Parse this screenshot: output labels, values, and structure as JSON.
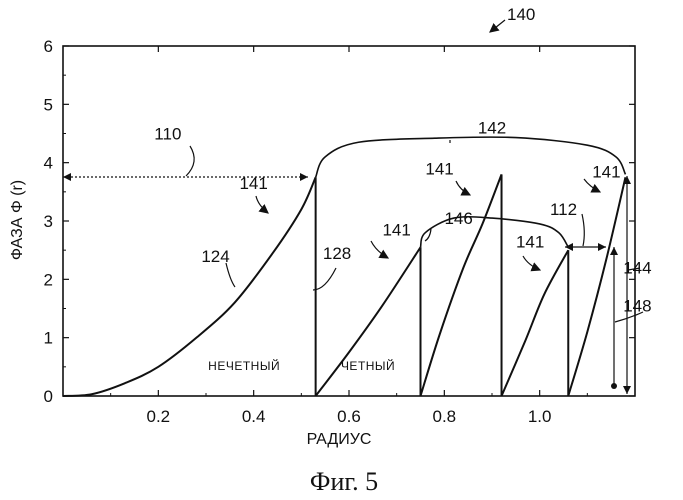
{
  "chart_data": {
    "type": "line",
    "title": "",
    "xlabel": "РАДИУС",
    "ylabel": "ФАЗА Φ (r)",
    "xlim": [
      0,
      1.2
    ],
    "ylim": [
      0,
      6
    ],
    "grid": false,
    "x_ticks": [
      "0.2",
      "0.4",
      "0.6",
      "0.8",
      "1.0"
    ],
    "y_ticks": [
      "0",
      "1",
      "2",
      "3",
      "4",
      "5",
      "6"
    ],
    "series": [
      {
        "points": [
          [
            0.0,
            0.0
          ],
          [
            0.06,
            0.03
          ],
          [
            0.13,
            0.22
          ],
          [
            0.2,
            0.5
          ],
          [
            0.28,
            1.0
          ],
          [
            0.36,
            1.6
          ],
          [
            0.44,
            2.45
          ],
          [
            0.5,
            3.2
          ],
          [
            0.53,
            3.75
          ]
        ]
      },
      {
        "points": [
          [
            0.53,
            3.75
          ],
          [
            0.53,
            0.0
          ]
        ]
      },
      {
        "points": [
          [
            0.53,
            0.0
          ],
          [
            0.6,
            0.75
          ],
          [
            0.67,
            1.55
          ],
          [
            0.75,
            2.55
          ]
        ]
      },
      {
        "points": [
          [
            0.75,
            2.55
          ],
          [
            0.75,
            0.0
          ]
        ]
      },
      {
        "points": [
          [
            0.75,
            0.0
          ],
          [
            0.79,
            1.05
          ],
          [
            0.84,
            2.2
          ],
          [
            0.88,
            2.95
          ],
          [
            0.92,
            3.8
          ]
        ]
      },
      {
        "points": [
          [
            0.92,
            3.8
          ],
          [
            0.92,
            0.0
          ]
        ]
      },
      {
        "points": [
          [
            0.92,
            0.0
          ],
          [
            0.97,
            0.95
          ],
          [
            1.01,
            1.75
          ],
          [
            1.06,
            2.5
          ]
        ]
      },
      {
        "points": [
          [
            1.06,
            2.5
          ],
          [
            1.06,
            0.0
          ]
        ]
      },
      {
        "points": [
          [
            1.06,
            0.0
          ],
          [
            1.1,
            1.1
          ],
          [
            1.14,
            2.35
          ],
          [
            1.18,
            3.75
          ]
        ]
      }
    ],
    "envelopes": [
      {
        "label": "142",
        "points": [
          [
            0.53,
            3.75
          ],
          [
            0.55,
            4.1
          ],
          [
            0.62,
            4.35
          ],
          [
            0.78,
            4.42
          ],
          [
            0.95,
            4.43
          ],
          [
            1.1,
            4.3
          ],
          [
            1.16,
            4.1
          ],
          [
            1.18,
            3.8
          ]
        ]
      },
      {
        "label": "146",
        "points": [
          [
            0.75,
            2.55
          ],
          [
            0.76,
            2.8
          ],
          [
            0.82,
            3.05
          ],
          [
            0.9,
            3.05
          ],
          [
            1.0,
            2.95
          ],
          [
            1.04,
            2.8
          ],
          [
            1.06,
            2.55
          ]
        ]
      }
    ],
    "annotations": {
      "title_ref": "140",
      "labels": [
        {
          "text": "110",
          "x": 0.22,
          "y": 4.4
        },
        {
          "text": "141",
          "x": 0.4,
          "y": 3.55
        },
        {
          "text": "124",
          "x": 0.32,
          "y": 2.3
        },
        {
          "text": "128",
          "x": 0.575,
          "y": 2.35
        },
        {
          "text": "142",
          "x": 0.9,
          "y": 4.5
        },
        {
          "text": "141",
          "x": 0.79,
          "y": 3.8
        },
        {
          "text": "141",
          "x": 0.7,
          "y": 2.75
        },
        {
          "text": "146",
          "x": 0.83,
          "y": 2.95
        },
        {
          "text": "141",
          "x": 1.14,
          "y": 3.75
        },
        {
          "text": "112",
          "x": 1.05,
          "y": 3.1
        },
        {
          "text": "141",
          "x": 0.98,
          "y": 2.55
        },
        {
          "text": "144",
          "x": 1.205,
          "y": 2.1
        },
        {
          "text": "148",
          "x": 1.205,
          "y": 1.45
        }
      ],
      "regions": [
        {
          "text": "НЕЧЕТНЫЙ",
          "x": 0.38,
          "y": 0.45
        },
        {
          "text": "ЧЕТНЫЙ",
          "x": 0.64,
          "y": 0.45
        }
      ]
    }
  },
  "caption": "Фиг. 5"
}
